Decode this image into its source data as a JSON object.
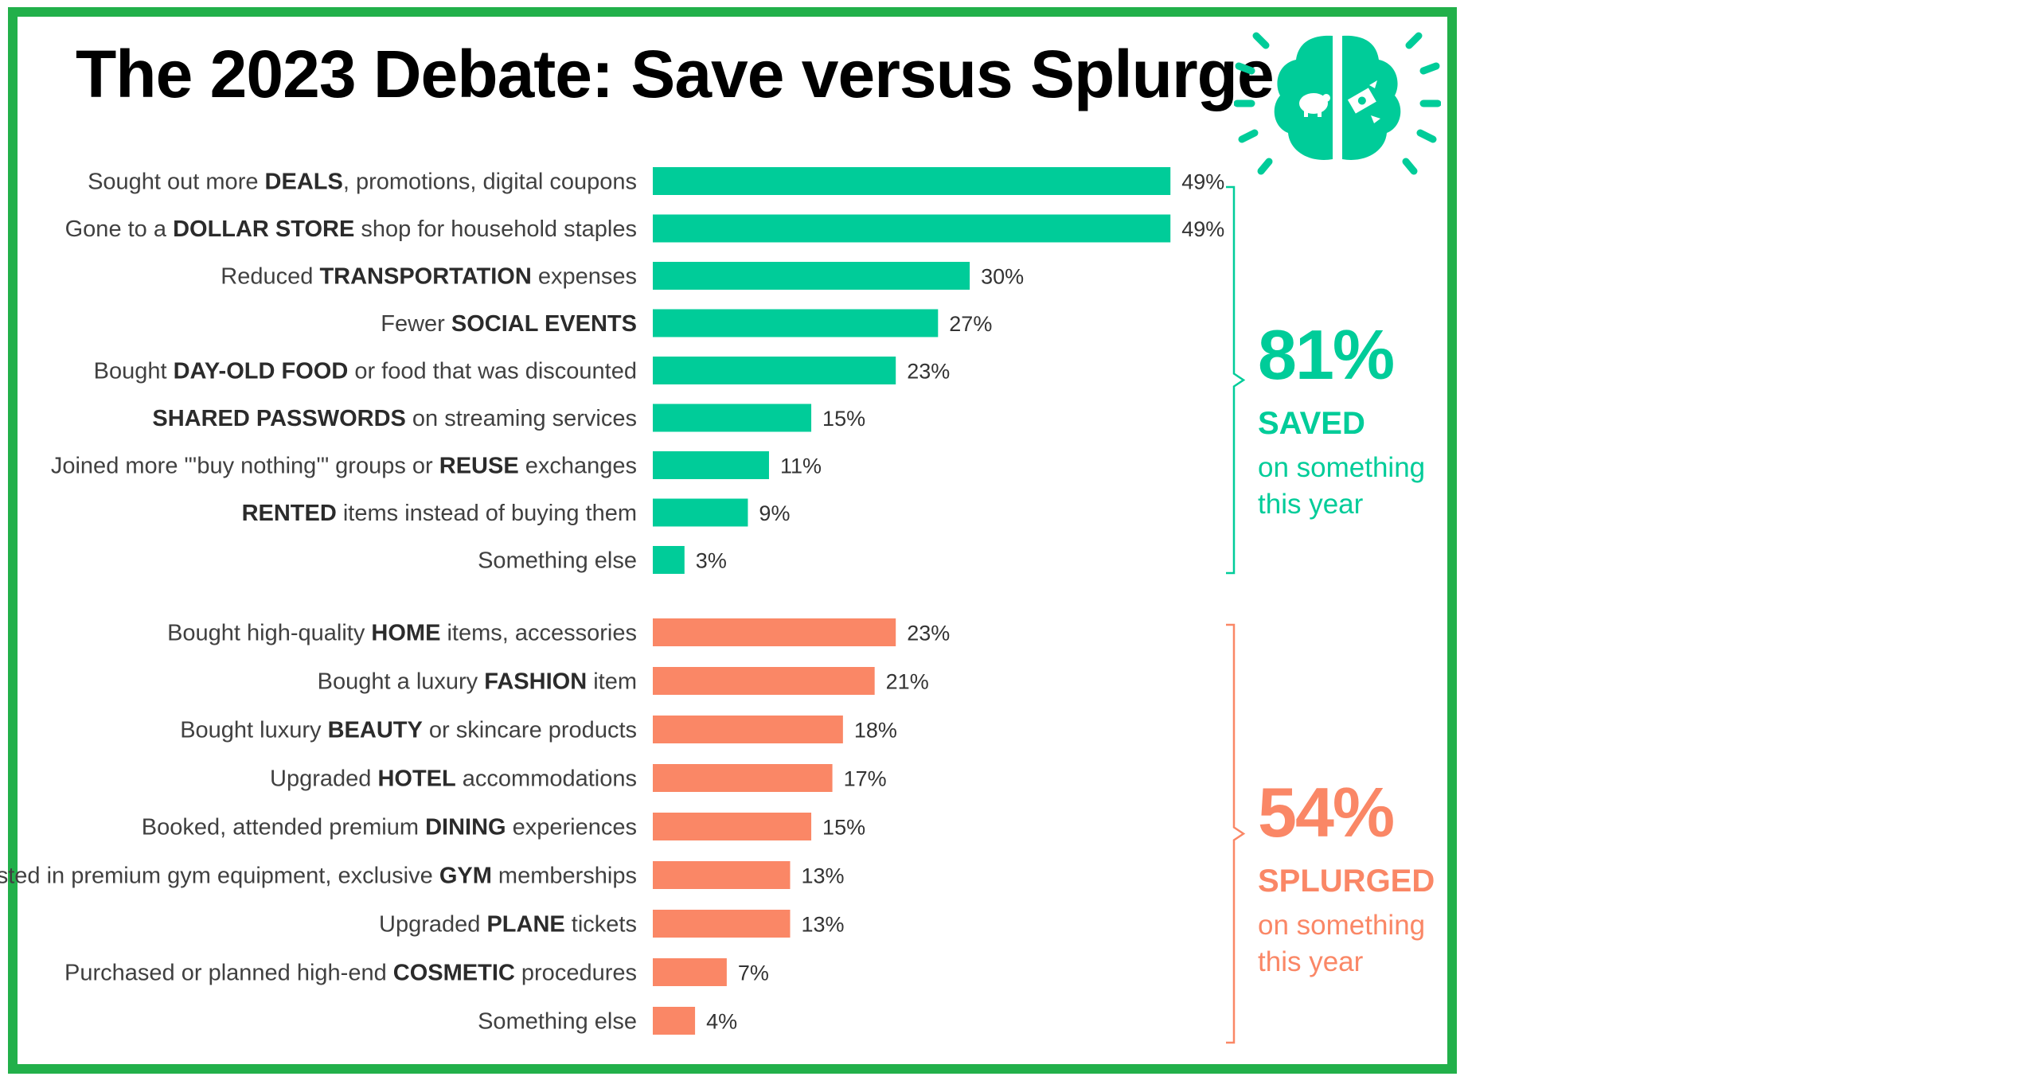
{
  "title": "The 2023 Debate: Save versus Splurge",
  "colors": {
    "frame": "#22b04a",
    "save": "#00cc99",
    "splurge": "#fa8766"
  },
  "icon": "brain-piggybank-money-icon",
  "summary": {
    "save": {
      "percent": "81%",
      "word": "SAVED",
      "sub": "on something this year"
    },
    "splurge": {
      "percent": "54%",
      "word": "SPLURGED",
      "sub": "on something this year"
    }
  },
  "chart_data": {
    "type": "bar",
    "orientation": "horizontal",
    "groups": [
      {
        "name": "save",
        "color": "#00cc99",
        "items": [
          {
            "label": [
              [
                "Sought out more ",
                false
              ],
              [
                "DEALS",
                true
              ],
              [
                ", promotions, digital coupons",
                false
              ]
            ],
            "value": 49,
            "value_label": "49%"
          },
          {
            "label": [
              [
                "Gone to a ",
                false
              ],
              [
                "DOLLAR STORE",
                true
              ],
              [
                " shop for household staples",
                false
              ]
            ],
            "value": 49,
            "value_label": "49%"
          },
          {
            "label": [
              [
                "Reduced ",
                false
              ],
              [
                "TRANSPORTATION",
                true
              ],
              [
                " expenses",
                false
              ]
            ],
            "value": 30,
            "value_label": "30%"
          },
          {
            "label": [
              [
                "Fewer ",
                false
              ],
              [
                "SOCIAL EVENTS",
                true
              ]
            ],
            "value": 27,
            "value_label": "27%"
          },
          {
            "label": [
              [
                "Bought ",
                false
              ],
              [
                "DAY-OLD FOOD",
                true
              ],
              [
                " or food that was discounted",
                false
              ]
            ],
            "value": 23,
            "value_label": "23%"
          },
          {
            "label": [
              [
                "SHARED PASSWORDS",
                true
              ],
              [
                " on streaming services",
                false
              ]
            ],
            "value": 15,
            "value_label": "15%"
          },
          {
            "label": [
              [
                "Joined more \"'buy nothing'\" groups or ",
                false
              ],
              [
                "REUSE",
                true
              ],
              [
                " exchanges",
                false
              ]
            ],
            "value": 11,
            "value_label": "11%"
          },
          {
            "label": [
              [
                "RENTED",
                true
              ],
              [
                " items instead of buying them",
                false
              ]
            ],
            "value": 9,
            "value_label": "9%"
          },
          {
            "label": [
              [
                "Something else",
                false
              ]
            ],
            "value": 3,
            "value_label": "3%"
          }
        ]
      },
      {
        "name": "splurge",
        "color": "#fa8766",
        "items": [
          {
            "label": [
              [
                "Bought high-quality ",
                false
              ],
              [
                "HOME",
                true
              ],
              [
                " items, accessories",
                false
              ]
            ],
            "value": 23,
            "value_label": "23%"
          },
          {
            "label": [
              [
                "Bought a luxury ",
                false
              ],
              [
                "FASHION",
                true
              ],
              [
                " item",
                false
              ]
            ],
            "value": 21,
            "value_label": "21%"
          },
          {
            "label": [
              [
                "Bought luxury ",
                false
              ],
              [
                "BEAUTY",
                true
              ],
              [
                " or skincare products",
                false
              ]
            ],
            "value": 18,
            "value_label": "18%"
          },
          {
            "label": [
              [
                "Upgraded ",
                false
              ],
              [
                "HOTEL",
                true
              ],
              [
                " accommodations",
                false
              ]
            ],
            "value": 17,
            "value_label": "17%"
          },
          {
            "label": [
              [
                "Booked, attended premium ",
                false
              ],
              [
                "DINING",
                true
              ],
              [
                " experiences",
                false
              ]
            ],
            "value": 15,
            "value_label": "15%"
          },
          {
            "label": [
              [
                "Invested in premium gym equipment, exclusive ",
                false
              ],
              [
                "GYM",
                true
              ],
              [
                " memberships",
                false
              ]
            ],
            "value": 13,
            "value_label": "13%"
          },
          {
            "label": [
              [
                "Upgraded ",
                false
              ],
              [
                "PLANE",
                true
              ],
              [
                " tickets",
                false
              ]
            ],
            "value": 13,
            "value_label": "13%"
          },
          {
            "label": [
              [
                "Purchased or planned high-end ",
                false
              ],
              [
                "COSMETIC",
                true
              ],
              [
                " procedures",
                false
              ]
            ],
            "value": 7,
            "value_label": "7%"
          },
          {
            "label": [
              [
                "Something else",
                false
              ]
            ],
            "value": 4,
            "value_label": "4%"
          }
        ]
      }
    ]
  }
}
